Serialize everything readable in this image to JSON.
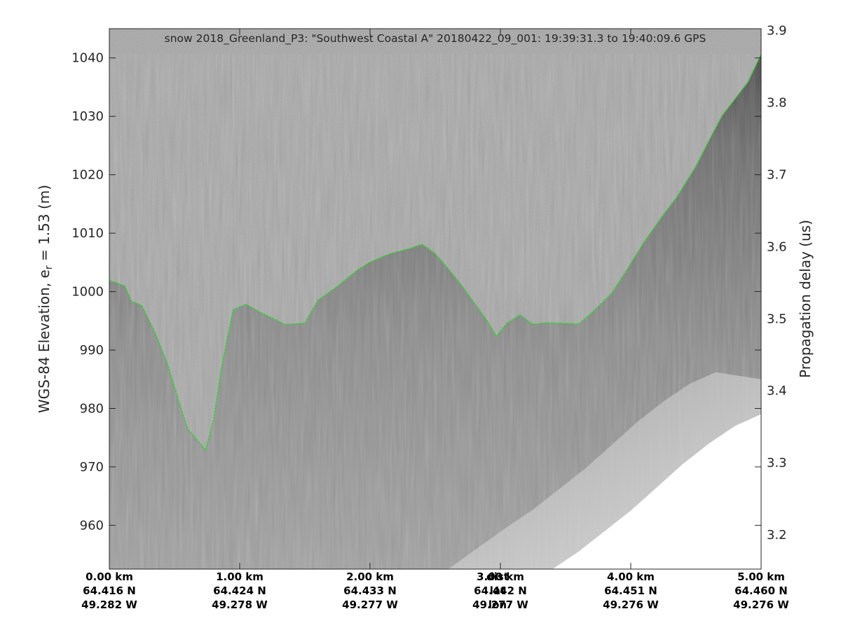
{
  "chart_data": {
    "type": "radar-echogram",
    "title": "snow 2018_Greenland_P3: \"Southwest Coastal A\"  20180422_09_001: 19:39:31.3 to 19:40:09.6 GPS",
    "ylabel_main": "WGS-84 Elevation, e",
    "ylabel_sub": "r",
    "ylabel_tail": " = 1.53 (m)",
    "y2label": "Propagation delay (us)",
    "ylim": [
      952.5,
      1045
    ],
    "y2lim": [
      3.1525,
      3.9025
    ],
    "xlim": [
      0,
      5
    ],
    "yticks": [
      960,
      970,
      980,
      990,
      1000,
      1010,
      1020,
      1030,
      1040
    ],
    "y2ticks": [
      "3.2",
      "3.3",
      "3.4",
      "3.5",
      "3.6",
      "3.7",
      "3.8",
      "3.9"
    ],
    "y2tick_values": [
      3.2,
      3.3,
      3.4,
      3.5,
      3.6,
      3.7,
      3.8,
      3.9
    ],
    "xticks": [
      {
        "x": 0,
        "dist": "0.00 km",
        "lat": "64.416 N",
        "lon": "49.282 W"
      },
      {
        "x": 1,
        "dist": "1.00 km",
        "lat": "64.424 N",
        "lon": "49.278 W"
      },
      {
        "x": 2,
        "dist": "2.00 km",
        "lat": "64.433 N",
        "lon": "49.277 W"
      },
      {
        "x": 3,
        "dist": "3.00 km",
        "lat": "64.442 N",
        "lon": "49.277 W"
      },
      {
        "x": 4,
        "dist": "4.00 km",
        "lat": "64.451 N",
        "lon": "49.276 W"
      },
      {
        "x": 5,
        "dist": "5.00 km",
        "lat": "64.460 N",
        "lon": "49.276 W"
      }
    ],
    "row_labels": {
      "dist": "dist",
      "lat": "lat",
      "lon": "lon"
    },
    "row_labels_x": 2.5,
    "surface": {
      "x": [
        0,
        0.05,
        0.12,
        0.17,
        0.25,
        0.35,
        0.45,
        0.52,
        0.6,
        0.68,
        0.74,
        0.8,
        0.86,
        0.95,
        1.05,
        1.15,
        1.25,
        1.35,
        1.5,
        1.6,
        1.75,
        1.9,
        2.0,
        2.15,
        2.3,
        2.4,
        2.5,
        2.6,
        2.7,
        2.8,
        2.9,
        2.97,
        3.05,
        3.15,
        3.25,
        3.35,
        3.5,
        3.6,
        3.7,
        3.85,
        3.95,
        4.1,
        4.25,
        4.35,
        4.5,
        4.6,
        4.7,
        4.8,
        4.9,
        5.0
      ],
      "y": [
        1001.7,
        1001.5,
        1001.0,
        998.5,
        997.5,
        993.0,
        987.5,
        982.0,
        976.5,
        974.5,
        973.0,
        978.0,
        987.0,
        997.0,
        997.7,
        996.5,
        995.5,
        994.5,
        994.5,
        998.5,
        1001.0,
        1003.5,
        1005.0,
        1006.5,
        1007.5,
        1008.0,
        1006.5,
        1004.0,
        1001.0,
        998.0,
        995.0,
        992.5,
        994.5,
        996.0,
        994.5,
        994.5,
        994.5,
        994.5,
        996.5,
        999.5,
        1003.0,
        1008.5,
        1013.0,
        1016.0,
        1021.5,
        1026.0,
        1030.0,
        1033.0,
        1036.0,
        1040.5
      ]
    },
    "clutter_region_edge": {
      "x": [
        3.4,
        3.6,
        3.8,
        4.0,
        4.2,
        4.4,
        4.6,
        4.8,
        5.0
      ],
      "y": [
        952.5,
        955.5,
        959.0,
        962.5,
        966.5,
        970.5,
        974.0,
        977.0,
        979.0
      ]
    },
    "grid": false,
    "colors": {
      "background": "#ffffff",
      "air": "#a7a7a7",
      "ice_dark": "#4a4a4a",
      "ice_mid": "#8a8a8a",
      "clutter_light": "#dcdcdc",
      "surface_pick": "#2ed22e",
      "axis": "#262626"
    }
  }
}
